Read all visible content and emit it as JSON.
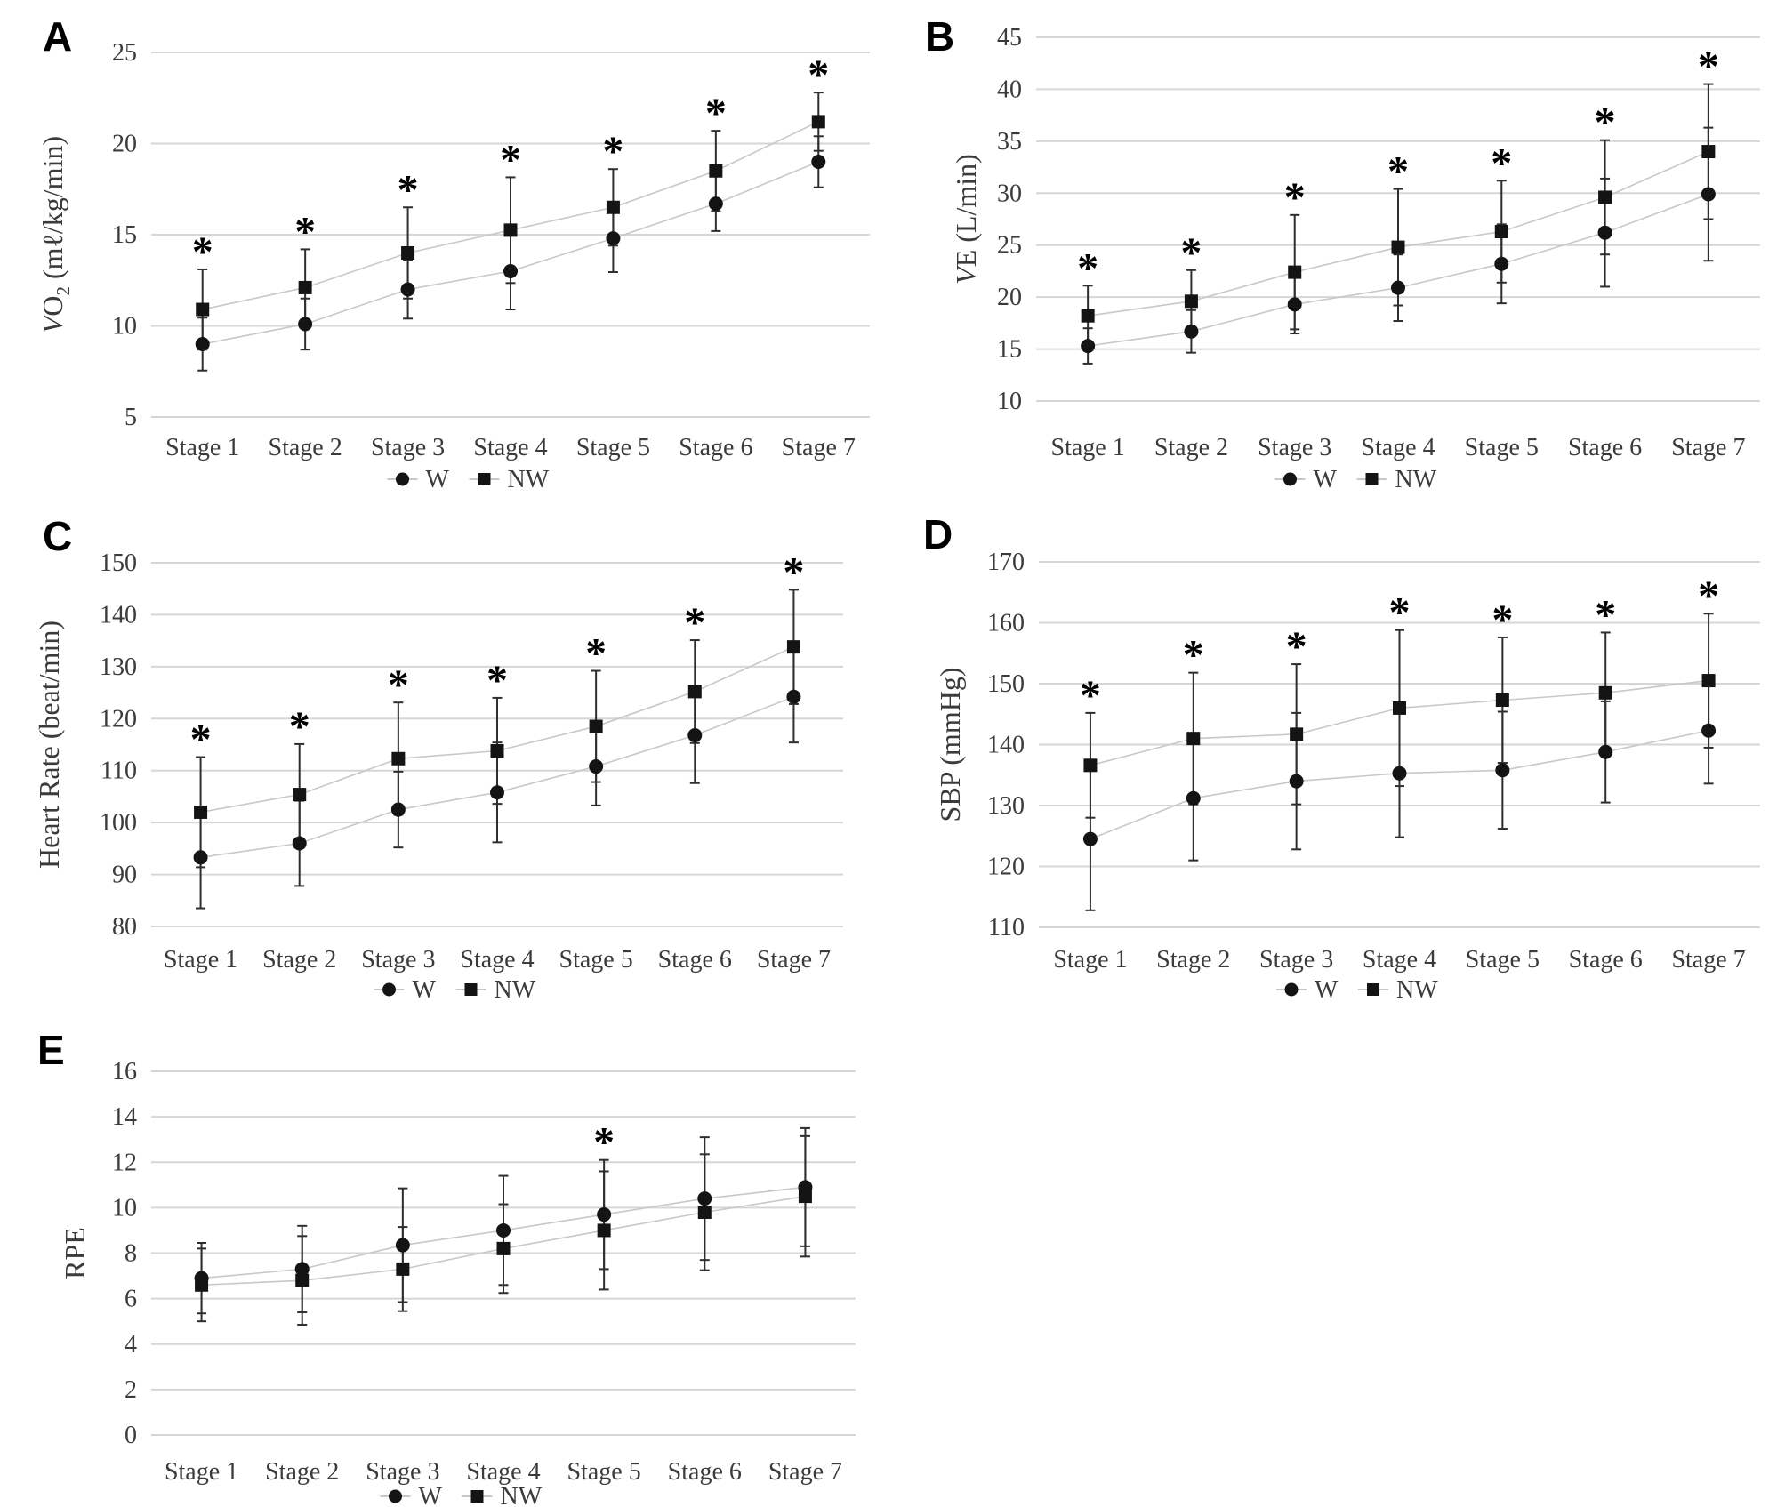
{
  "colors": {
    "marker": "#141414",
    "error_bar": "#2e2e2e",
    "series_line": "#c8c8c8",
    "gridline": "#d6d6d6",
    "tick_text": "#3b3b3b",
    "star": "#000000",
    "background": "#ffffff"
  },
  "chart_data": [
    {
      "panel": "A",
      "type": "line",
      "ylabel_text": "VO2 (ml/kg/min)",
      "ylabel_parts": [
        {
          "t": "V",
          "style": "italic"
        },
        {
          "t": "O"
        },
        {
          "t": "2",
          "style": "sub"
        },
        {
          "t": " (mℓ/kg/min)"
        }
      ],
      "ylim": [
        5,
        25
      ],
      "yticks": [
        25,
        20,
        15,
        10,
        5
      ],
      "grid": true,
      "legend_position": "bottom",
      "categories": [
        "Stage 1",
        "Stage 2",
        "Stage 3",
        "Stage 4",
        "Stage 5",
        "Stage 6",
        "Stage 7"
      ],
      "series": [
        {
          "name": "W",
          "marker": "circle",
          "values": [
            9.0,
            10.1,
            12.0,
            13.0,
            14.8,
            16.7,
            19.0
          ],
          "err": [
            1.45,
            1.4,
            1.6,
            2.1,
            1.85,
            1.5,
            1.4
          ]
        },
        {
          "name": "NW",
          "marker": "square",
          "values": [
            10.9,
            12.1,
            14.0,
            15.25,
            16.5,
            18.5,
            21.2
          ],
          "err": [
            2.2,
            2.1,
            2.5,
            2.9,
            2.1,
            2.2,
            1.6
          ]
        }
      ],
      "significant_stages": [
        1,
        2,
        3,
        4,
        5,
        6,
        7
      ]
    },
    {
      "panel": "B",
      "type": "line",
      "ylabel_text": "VE (L/min)",
      "ylabel_parts": [
        {
          "t": "V",
          "style": "italic"
        },
        {
          "t": "E (L/min)"
        }
      ],
      "ylim": [
        10,
        45
      ],
      "yticks": [
        45,
        40,
        35,
        30,
        25,
        20,
        15,
        10
      ],
      "grid": true,
      "legend_position": "bottom",
      "categories": [
        "Stage 1",
        "Stage 2",
        "Stage 3",
        "Stage 4",
        "Stage 5",
        "Stage 6",
        "Stage 7"
      ],
      "series": [
        {
          "name": "W",
          "marker": "circle",
          "values": [
            15.3,
            16.7,
            19.3,
            20.9,
            23.2,
            26.2,
            29.9
          ],
          "err": [
            1.7,
            2.05,
            2.8,
            3.2,
            3.8,
            5.2,
            6.4
          ]
        },
        {
          "name": "NW",
          "marker": "square",
          "values": [
            18.2,
            19.6,
            22.4,
            24.8,
            26.3,
            29.6,
            34.0
          ],
          "err": [
            2.9,
            3.0,
            5.5,
            5.6,
            4.9,
            5.5,
            6.5
          ]
        }
      ],
      "significant_stages": [
        1,
        2,
        3,
        4,
        5,
        6,
        7
      ]
    },
    {
      "panel": "C",
      "type": "line",
      "ylabel_text": "Heart Rate (beat/min)",
      "ylabel_parts": [
        {
          "t": "Heart Rate (beat/min)"
        }
      ],
      "ylim": [
        80,
        150
      ],
      "yticks": [
        150,
        140,
        130,
        120,
        110,
        100,
        90,
        80
      ],
      "grid": true,
      "legend_position": "bottom",
      "categories": [
        "Stage 1",
        "Stage 2",
        "Stage 3",
        "Stage 4",
        "Stage 5",
        "Stage 6",
        "Stage 7"
      ],
      "series": [
        {
          "name": "W",
          "marker": "circle",
          "values": [
            93.3,
            96.0,
            102.5,
            105.8,
            110.8,
            116.8,
            124.2
          ],
          "err": [
            9.8,
            8.2,
            7.3,
            9.6,
            7.5,
            9.2,
            8.8
          ]
        },
        {
          "name": "NW",
          "marker": "square",
          "values": [
            102.0,
            105.4,
            112.3,
            113.8,
            118.5,
            125.2,
            133.8
          ],
          "err": [
            10.6,
            9.7,
            10.8,
            10.2,
            10.7,
            9.9,
            11.0
          ]
        }
      ],
      "significant_stages": [
        1,
        2,
        3,
        4,
        5,
        6,
        7
      ]
    },
    {
      "panel": "D",
      "type": "line",
      "ylabel_text": "SBP (mmHg)",
      "ylabel_parts": [
        {
          "t": "SBP (mmHg)"
        }
      ],
      "ylim": [
        110,
        170
      ],
      "yticks": [
        170,
        160,
        150,
        140,
        130,
        120,
        110
      ],
      "grid": true,
      "legend_position": "bottom",
      "categories": [
        "Stage 1",
        "Stage 2",
        "Stage 3",
        "Stage 4",
        "Stage 5",
        "Stage 6",
        "Stage 7"
      ],
      "series": [
        {
          "name": "W",
          "marker": "circle",
          "values": [
            124.5,
            131.2,
            134.0,
            135.3,
            135.8,
            138.8,
            142.3
          ],
          "err": [
            11.7,
            10.2,
            11.2,
            10.5,
            9.6,
            8.3,
            8.7
          ]
        },
        {
          "name": "NW",
          "marker": "square",
          "values": [
            136.6,
            141.0,
            141.7,
            146.0,
            147.3,
            148.5,
            150.5
          ],
          "err": [
            8.6,
            10.8,
            11.5,
            12.8,
            10.3,
            9.9,
            11.0
          ]
        }
      ],
      "significant_stages": [
        1,
        2,
        3,
        4,
        5,
        6,
        7
      ]
    },
    {
      "panel": "E",
      "type": "line",
      "ylabel_text": "RPE",
      "ylabel_parts": [
        {
          "t": "RPE"
        }
      ],
      "ylim": [
        0,
        16
      ],
      "yticks": [
        16,
        14,
        12,
        10,
        8,
        6,
        4,
        2,
        0
      ],
      "grid": true,
      "legend_position": "bottom",
      "categories": [
        "Stage 1",
        "Stage 2",
        "Stage 3",
        "Stage 4",
        "Stage 5",
        "Stage 6",
        "Stage 7"
      ],
      "series": [
        {
          "name": "W",
          "marker": "circle",
          "values": [
            6.9,
            7.3,
            8.35,
            9.0,
            9.7,
            10.4,
            10.9
          ],
          "err": [
            1.55,
            1.9,
            2.5,
            2.4,
            2.4,
            2.7,
            2.6
          ]
        },
        {
          "name": "NW",
          "marker": "square",
          "values": [
            6.6,
            6.8,
            7.3,
            8.2,
            9.0,
            9.8,
            10.5
          ],
          "err": [
            1.6,
            1.95,
            1.85,
            1.95,
            2.6,
            2.55,
            2.65
          ]
        }
      ],
      "significant_stages": [
        5
      ]
    }
  ]
}
